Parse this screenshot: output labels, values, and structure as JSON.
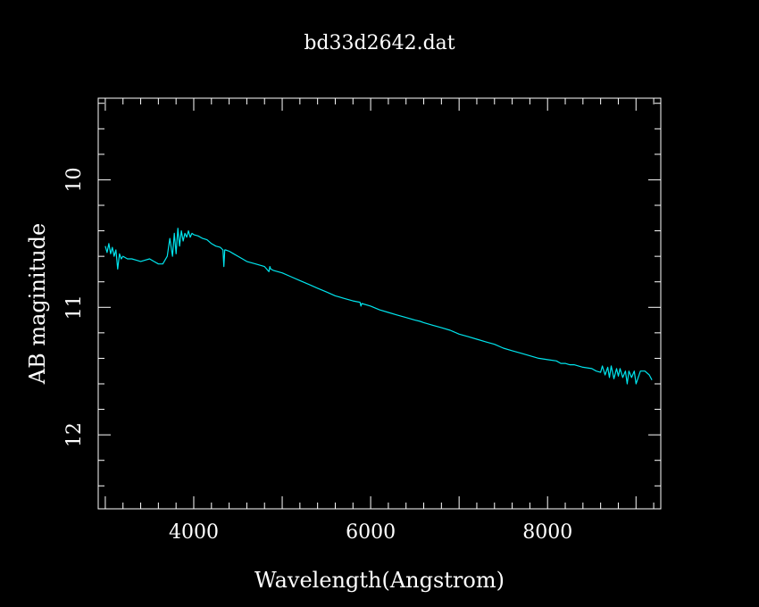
{
  "chart_data": {
    "type": "line",
    "title": "bd33d2642.dat",
    "xlabel": "Wavelength(Angstrom)",
    "ylabel": "AB maginitude",
    "xlim": [
      2920,
      9280
    ],
    "ylim": [
      12.58,
      9.36
    ],
    "y_axis_inverted": true,
    "x_major_ticks": [
      4000,
      6000,
      8000
    ],
    "x_tick_labels": [
      "4000",
      "6000",
      "8000"
    ],
    "x_minor_step": 200,
    "y_major_ticks": [
      10,
      11,
      12
    ],
    "y_tick_labels": [
      "10",
      "11",
      "12"
    ],
    "y_minor_step": 0.2,
    "grid": false,
    "background_color": "#000000",
    "axis_color": "#ffffff",
    "series": [
      {
        "color": "#00e5ee",
        "x": [
          3000,
          3020,
          3040,
          3060,
          3080,
          3100,
          3120,
          3140,
          3160,
          3180,
          3200,
          3250,
          3300,
          3350,
          3400,
          3450,
          3500,
          3550,
          3600,
          3650,
          3700,
          3730,
          3760,
          3780,
          3800,
          3820,
          3840,
          3860,
          3880,
          3900,
          3920,
          3940,
          3960,
          3980,
          4000,
          4050,
          4100,
          4150,
          4200,
          4250,
          4300,
          4330,
          4340,
          4350,
          4360,
          4400,
          4450,
          4500,
          4550,
          4600,
          4700,
          4800,
          4850,
          4860,
          4870,
          4900,
          5000,
          5100,
          5200,
          5300,
          5400,
          5500,
          5600,
          5700,
          5800,
          5880,
          5890,
          5900,
          6000,
          6100,
          6200,
          6300,
          6400,
          6500,
          6560,
          6600,
          6700,
          6800,
          6900,
          7000,
          7100,
          7200,
          7300,
          7400,
          7500,
          7600,
          7700,
          7800,
          7900,
          8000,
          8100,
          8150,
          8200,
          8250,
          8300,
          8400,
          8500,
          8550,
          8600,
          8620,
          8650,
          8680,
          8700,
          8720,
          8750,
          8780,
          8800,
          8820,
          8850,
          8880,
          8900,
          8920,
          8950,
          8980,
          9000,
          9050,
          9100,
          9150,
          9180
        ],
        "y": [
          10.52,
          10.57,
          10.5,
          10.58,
          10.53,
          10.6,
          10.55,
          10.7,
          10.58,
          10.62,
          10.6,
          10.62,
          10.62,
          10.63,
          10.64,
          10.63,
          10.62,
          10.64,
          10.66,
          10.66,
          10.6,
          10.46,
          10.6,
          10.42,
          10.58,
          10.38,
          10.52,
          10.4,
          10.48,
          10.42,
          10.45,
          10.4,
          10.45,
          10.42,
          10.43,
          10.44,
          10.46,
          10.47,
          10.5,
          10.52,
          10.53,
          10.55,
          10.68,
          10.55,
          10.55,
          10.56,
          10.58,
          10.6,
          10.62,
          10.64,
          10.66,
          10.68,
          10.72,
          10.68,
          10.7,
          10.71,
          10.73,
          10.76,
          10.79,
          10.82,
          10.85,
          10.88,
          10.91,
          10.93,
          10.95,
          10.96,
          10.99,
          10.97,
          10.99,
          11.02,
          11.04,
          11.06,
          11.08,
          11.1,
          11.11,
          11.12,
          11.14,
          11.16,
          11.18,
          11.21,
          11.23,
          11.25,
          11.27,
          11.29,
          11.32,
          11.34,
          11.36,
          11.38,
          11.4,
          11.41,
          11.42,
          11.44,
          11.44,
          11.45,
          11.45,
          11.47,
          11.48,
          11.5,
          11.51,
          11.46,
          11.53,
          11.47,
          11.55,
          11.46,
          11.56,
          11.48,
          11.54,
          11.48,
          11.55,
          11.5,
          11.6,
          11.5,
          11.55,
          11.5,
          11.6,
          11.5,
          11.5,
          11.53,
          11.57
        ]
      }
    ]
  }
}
